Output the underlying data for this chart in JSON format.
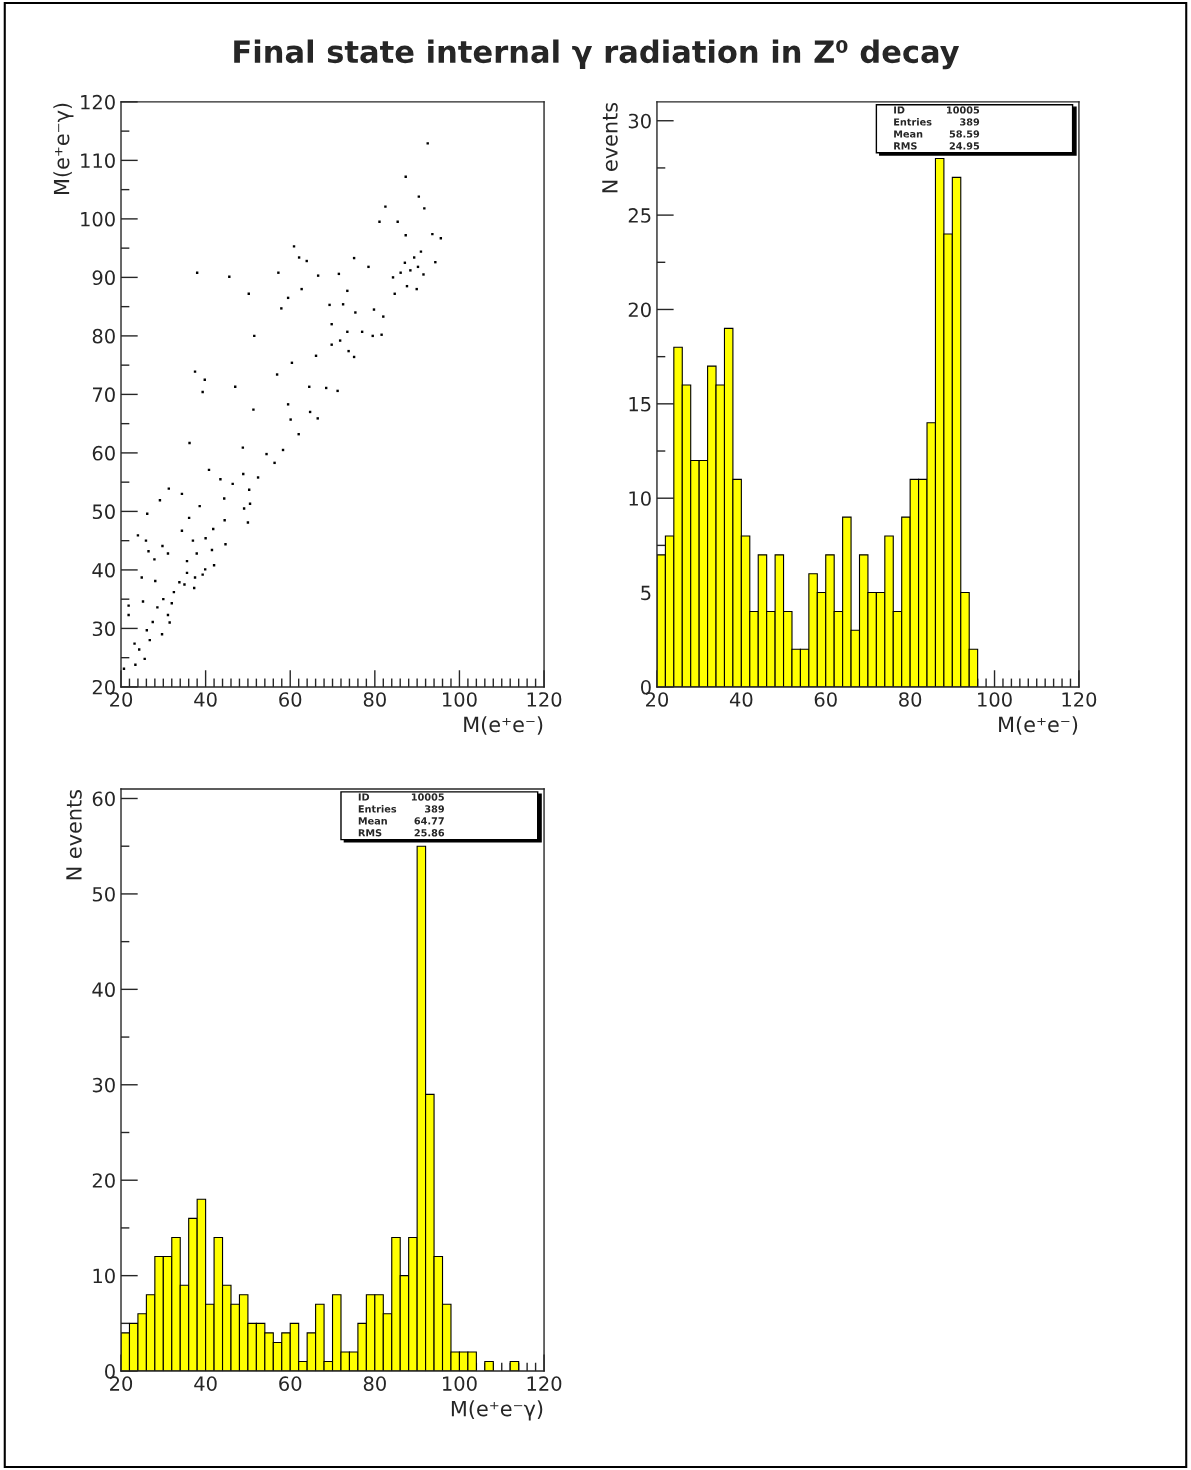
{
  "chart_data": [
    {
      "type": "scatter",
      "title": "Final state internal γ radiation in Z⁰ decay",
      "xlabel": "M(e⁺e⁻)",
      "ylabel": "M(e⁺e⁻γ)",
      "marker": "square",
      "color": "#000000",
      "x": [
        92.5,
        87.3,
        90.4,
        82.5,
        91.7,
        81.1,
        85.4,
        95.6,
        93.6,
        87.3,
        60.9,
        90.9,
        89.3,
        87.1,
        90.2,
        88.4,
        86.1,
        84.3,
        91.5,
        87.6,
        89.9,
        94.3,
        38.0,
        45.6,
        57.2,
        62.1,
        63.9,
        66.6,
        71.5,
        75.1,
        78.5,
        50.2,
        62.7,
        59.5,
        73.5,
        84.7,
        57.9,
        69.3,
        72.5,
        75.4,
        79.8,
        82.0,
        69.8,
        73.5,
        77.0,
        79.5,
        81.6,
        51.5,
        71.8,
        69.8,
        73.8,
        75.1,
        66.1,
        60.4,
        37.5,
        39.8,
        39.3,
        47.0,
        56.9,
        64.5,
        68.5,
        71.2,
        51.3,
        59.5,
        64.7,
        66.5,
        60.1,
        62.0,
        36.2,
        48.8,
        58.3,
        54.4,
        56.3,
        40.8,
        43.5,
        46.4,
        48.9,
        52.4,
        50.3,
        44.4,
        34.4,
        29.2,
        31.3,
        38.6,
        50.5,
        49.1,
        50.0,
        44.5,
        36.1,
        26.2,
        34.4,
        41.8,
        44.7,
        40.0,
        37.0,
        24.0,
        25.9,
        29.8,
        41.5,
        37.9,
        31.1,
        26.5,
        27.9,
        39.9,
        35.6,
        37.5,
        33.8,
        32.5,
        32.0,
        35.6,
        24.9,
        28.1,
        30.0,
        25.2,
        28.6,
        31.1,
        21.8,
        27.5,
        31.5,
        26.1,
        29.7,
        26.8,
        23.2,
        24.3,
        25.6,
        23.4,
        20.7,
        21.8,
        39.3,
        37.3,
        35.0,
        42.0
      ],
      "values": [
        112.9,
        107.2,
        103.8,
        102.1,
        101.8,
        99.5,
        99.5,
        96.7,
        97.4,
        97.2,
        95.3,
        94.4,
        93.4,
        92.5,
        91.8,
        91.2,
        90.8,
        90.0,
        90.5,
        88.5,
        88.0,
        92.6,
        90.8,
        90.1,
        90.8,
        93.4,
        92.8,
        90.3,
        90.6,
        93.3,
        91.8,
        87.2,
        88.0,
        86.5,
        87.7,
        87.2,
        84.7,
        85.3,
        85.4,
        84.0,
        84.5,
        83.3,
        82.0,
        80.7,
        80.7,
        80.0,
        80.2,
        80.0,
        79.2,
        78.5,
        77.4,
        76.4,
        76.6,
        75.4,
        73.9,
        72.5,
        70.4,
        71.3,
        73.4,
        71.3,
        71.1,
        70.6,
        67.4,
        68.3,
        67.0,
        65.9,
        65.7,
        63.2,
        61.7,
        60.9,
        60.5,
        59.8,
        58.3,
        57.1,
        55.5,
        54.7,
        56.4,
        55.8,
        53.7,
        52.2,
        53.0,
        51.9,
        53.9,
        50.9,
        51.3,
        50.5,
        48.1,
        48.5,
        48.9,
        49.6,
        46.7,
        47.0,
        44.4,
        45.4,
        45.0,
        45.9,
        45.0,
        44.1,
        43.4,
        42.8,
        42.8,
        43.2,
        41.8,
        40.1,
        39.5,
        38.7,
        37.9,
        36.2,
        34.3,
        41.5,
        38.7,
        38.1,
        35.0,
        34.6,
        33.6,
        32.3,
        32.3,
        31.1,
        31.0,
        29.7,
        29.0,
        28.0,
        27.4,
        26.4,
        24.8,
        23.8,
        23.1,
        33.9,
        39.2,
        36.9,
        37.5,
        40.8
      ],
      "xlim": [
        20,
        120
      ],
      "ylim": [
        20,
        120
      ],
      "xticks": [
        20,
        40,
        60,
        80,
        100,
        120
      ],
      "yticks": [
        20,
        30,
        40,
        50,
        60,
        70,
        80,
        90,
        100,
        110,
        120
      ]
    },
    {
      "type": "histogram",
      "xlabel": "M(e⁺e⁻)",
      "ylabel": "N events",
      "color": "#ffff00",
      "bins": [
        20,
        22,
        24,
        26,
        28,
        30,
        32,
        34,
        36,
        38,
        40,
        42,
        44,
        46,
        48,
        50,
        52,
        54,
        56,
        58,
        60,
        62,
        64,
        66,
        68,
        70,
        72,
        74,
        76,
        78,
        80,
        82,
        84,
        86,
        88,
        90,
        92,
        94,
        96,
        98,
        100,
        102,
        104,
        106,
        108,
        110,
        112,
        114,
        116,
        118,
        120
      ],
      "values": [
        7,
        8,
        18,
        16,
        12,
        12,
        17,
        16,
        19,
        11,
        8,
        4,
        7,
        4,
        7,
        4,
        2,
        2,
        6,
        5,
        7,
        4,
        9,
        3,
        7,
        5,
        5,
        8,
        4,
        9,
        11,
        11,
        14,
        28,
        24,
        27,
        5,
        2,
        0,
        0,
        0,
        0,
        0,
        0,
        0,
        0,
        0,
        0,
        0,
        0
      ],
      "xlim": [
        20,
        120
      ],
      "ylim": [
        0,
        31
      ],
      "xticks": [
        20,
        40,
        60,
        80,
        100,
        120
      ],
      "yticks": [
        0,
        5,
        10,
        15,
        20,
        25,
        30
      ],
      "annotations": [
        "ID",
        "10005",
        "Entries",
        "389",
        "Mean",
        "58.59",
        "RMS",
        "24.95"
      ]
    },
    {
      "type": "histogram",
      "xlabel": "M(e⁺e⁻γ)",
      "ylabel": "N events",
      "color": "#ffff00",
      "bins": [
        20,
        22,
        24,
        26,
        28,
        30,
        32,
        34,
        36,
        38,
        40,
        42,
        44,
        46,
        48,
        50,
        52,
        54,
        56,
        58,
        60,
        62,
        64,
        66,
        68,
        70,
        72,
        74,
        76,
        78,
        80,
        82,
        84,
        86,
        88,
        90,
        92,
        94,
        96,
        98,
        100,
        102,
        104,
        106,
        108,
        110,
        112,
        114,
        116,
        118,
        120
      ],
      "values": [
        4,
        5,
        6,
        8,
        12,
        12,
        14,
        9,
        16,
        18,
        7,
        14,
        9,
        7,
        8,
        5,
        5,
        4,
        3,
        4,
        5,
        1,
        4,
        7,
        1,
        8,
        2,
        2,
        5,
        8,
        8,
        6,
        14,
        10,
        14,
        55,
        29,
        12,
        7,
        2,
        2,
        2,
        0,
        1,
        0,
        0,
        1,
        0,
        0,
        0
      ],
      "xlim": [
        20,
        120
      ],
      "ylim": [
        0,
        61
      ],
      "xticks": [
        20,
        40,
        60,
        80,
        100,
        120
      ],
      "yticks": [
        0,
        10,
        20,
        30,
        40,
        50,
        60
      ],
      "annotations": [
        "ID",
        "10005",
        "Entries",
        "389",
        "Mean",
        "64.77",
        "RMS",
        "25.86"
      ]
    }
  ]
}
